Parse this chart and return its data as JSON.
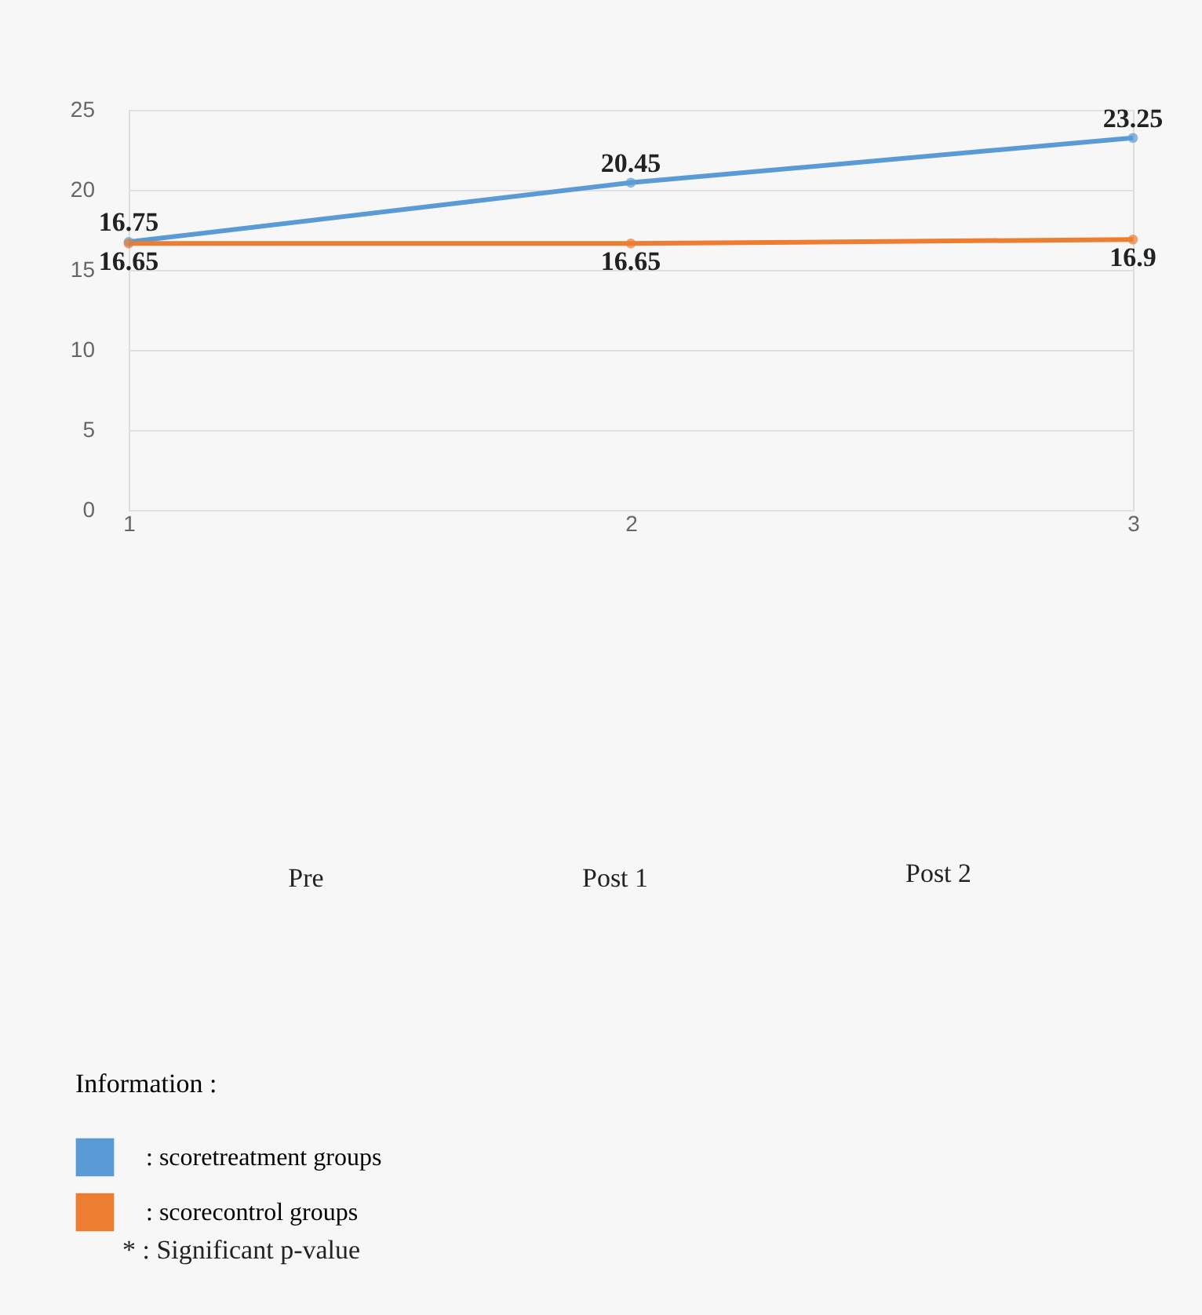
{
  "chart_data": {
    "type": "line",
    "x": [
      1,
      2,
      3
    ],
    "series": [
      {
        "name": ": scoretreatment groups",
        "color": "#5b9bd5",
        "values": [
          16.75,
          20.45,
          23.25
        ]
      },
      {
        "name": ": scorecontrol groups",
        "color": "#ed7d31",
        "values": [
          16.65,
          16.65,
          16.9
        ]
      }
    ],
    "xlim": [
      1,
      3
    ],
    "xticks": [
      1,
      2,
      3
    ],
    "ylim": [
      0,
      25
    ],
    "yticks": [
      0,
      5,
      10,
      15,
      20,
      25
    ],
    "grid": "y",
    "marker": "circle",
    "line_style": "solid",
    "data_labels": true,
    "legend": "bottom left",
    "legend_title": "Information :",
    "annotations": [
      "Pre",
      "Post 1",
      "Post 2",
      "* : Significant p-value"
    ]
  }
}
